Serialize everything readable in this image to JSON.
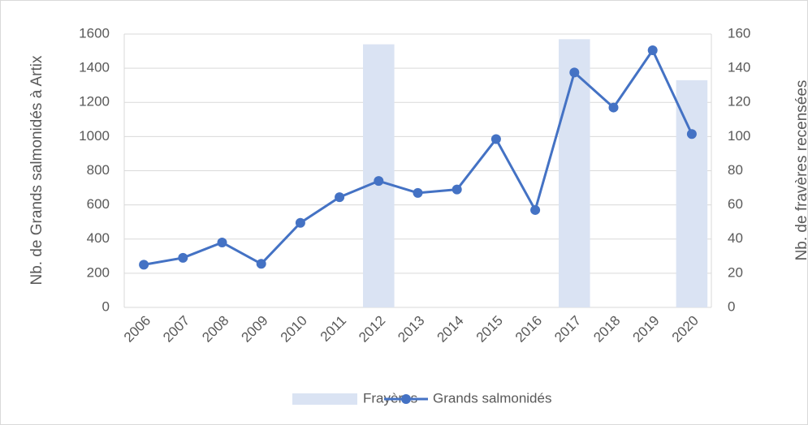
{
  "chart_data": {
    "type": "combo",
    "categories": [
      "2006",
      "2007",
      "2008",
      "2009",
      "2010",
      "2011",
      "2012",
      "2013",
      "2014",
      "2015",
      "2016",
      "2017",
      "2018",
      "2019",
      "2020"
    ],
    "series": [
      {
        "name": "Frayères",
        "type": "bar",
        "axis": "y2",
        "color": "#dae3f3",
        "values": [
          null,
          null,
          null,
          null,
          null,
          null,
          154,
          null,
          null,
          null,
          null,
          157,
          null,
          null,
          133
        ]
      },
      {
        "name": "Grands salmonidés",
        "type": "line",
        "color": "#4472c4",
        "values": [
          250,
          290,
          380,
          255,
          495,
          645,
          740,
          670,
          690,
          985,
          570,
          1375,
          1170,
          1505,
          1015
        ]
      }
    ],
    "ylabel": "Nb. de Grands salmonidés à Artix",
    "y2label": "Nb. de fravères recensées",
    "ylim": [
      0,
      1600
    ],
    "yticks": [
      0,
      200,
      400,
      600,
      800,
      1000,
      1200,
      1400,
      1600
    ],
    "y2lim": [
      0,
      160
    ],
    "y2ticks": [
      0,
      20,
      40,
      60,
      80,
      100,
      120,
      140,
      160
    ],
    "grid": true,
    "legend": "bottom"
  }
}
